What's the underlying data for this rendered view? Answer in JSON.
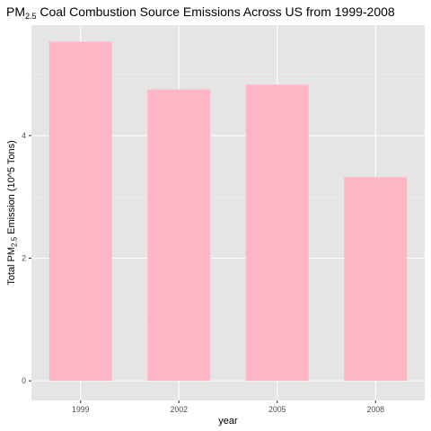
{
  "chart_data": {
    "type": "bar",
    "title": {
      "prefix": "PM",
      "subscript": "2.5",
      "suffix": " Coal Combustion Source Emissions Across US from 1999-2008"
    },
    "xlabel": "year",
    "ylabel": {
      "prefix": "Total PM",
      "subscript": "2.5",
      "suffix": " Emission (10^5 Tons)"
    },
    "categories": [
      "1999",
      "2002",
      "2005",
      "2008"
    ],
    "values": [
      5.53,
      4.75,
      4.83,
      3.32
    ],
    "ylim": [
      -0.32,
      5.8
    ],
    "yticks": [
      0,
      2,
      4
    ],
    "ytick_labels": [
      "0",
      "2",
      "4"
    ],
    "grid": true,
    "bar_color": "#FFB6C6",
    "panel_color": "#E5E5E5",
    "legend": "none"
  }
}
